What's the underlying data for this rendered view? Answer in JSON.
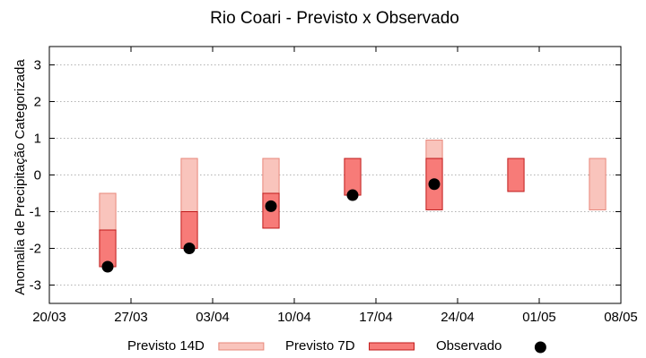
{
  "chart_data": {
    "type": "floating-bar",
    "title": "Rio Coari - Previsto x Observado",
    "ylabel": "Anomalia de Precipitação Categorizada",
    "xlabel": "",
    "ylim": [
      -3.5,
      3.5
    ],
    "yticks": [
      -3,
      -2,
      -1,
      0,
      1,
      2,
      3
    ],
    "xlim": [
      "2000-03-20",
      "2000-05-08"
    ],
    "xticks": [
      {
        "date": "2000-03-20",
        "label": "20/03"
      },
      {
        "date": "2000-03-27",
        "label": "27/03"
      },
      {
        "date": "2000-04-03",
        "label": "03/04"
      },
      {
        "date": "2000-04-10",
        "label": "10/04"
      },
      {
        "date": "2000-04-17",
        "label": "17/04"
      },
      {
        "date": "2000-04-24",
        "label": "24/04"
      },
      {
        "date": "2000-05-01",
        "label": "01/05"
      },
      {
        "date": "2000-05-08",
        "label": "08/05"
      }
    ],
    "grid": true,
    "legend_position": "bottom",
    "series": [
      {
        "name": "Previsto 14D",
        "kind": "range",
        "color_fill": "#f9c4bc",
        "color_stroke": "#e8877a",
        "points": [
          {
            "x": "2000-03-25",
            "low": -1.5,
            "high": -0.5
          },
          {
            "x": "2000-04-01",
            "low": -1.0,
            "high": 0.45
          },
          {
            "x": "2000-04-08",
            "low": -0.5,
            "high": 0.45
          },
          {
            "x": "2000-04-22",
            "low": 0.45,
            "high": 0.95
          },
          {
            "x": "2000-05-06",
            "low": -0.95,
            "high": 0.45
          }
        ]
      },
      {
        "name": "Previsto 7D",
        "kind": "range",
        "color_fill": "#f77b78",
        "color_stroke": "#c01a1a",
        "points": [
          {
            "x": "2000-03-25",
            "low": -2.5,
            "high": -1.5
          },
          {
            "x": "2000-04-01",
            "low": -2.0,
            "high": -1.0
          },
          {
            "x": "2000-04-08",
            "low": -1.45,
            "high": -0.5
          },
          {
            "x": "2000-04-15",
            "low": -0.55,
            "high": 0.45
          },
          {
            "x": "2000-04-22",
            "low": -0.95,
            "high": 0.45
          },
          {
            "x": "2000-04-29",
            "low": -0.45,
            "high": 0.45
          }
        ]
      },
      {
        "name": "Observado",
        "kind": "point",
        "color_fill": "#000000",
        "points": [
          {
            "x": "2000-03-25",
            "y": -2.5
          },
          {
            "x": "2000-04-01",
            "y": -2.0
          },
          {
            "x": "2000-04-08",
            "y": -0.85
          },
          {
            "x": "2000-04-15",
            "y": -0.55
          },
          {
            "x": "2000-04-22",
            "y": -0.25
          }
        ]
      }
    ]
  }
}
